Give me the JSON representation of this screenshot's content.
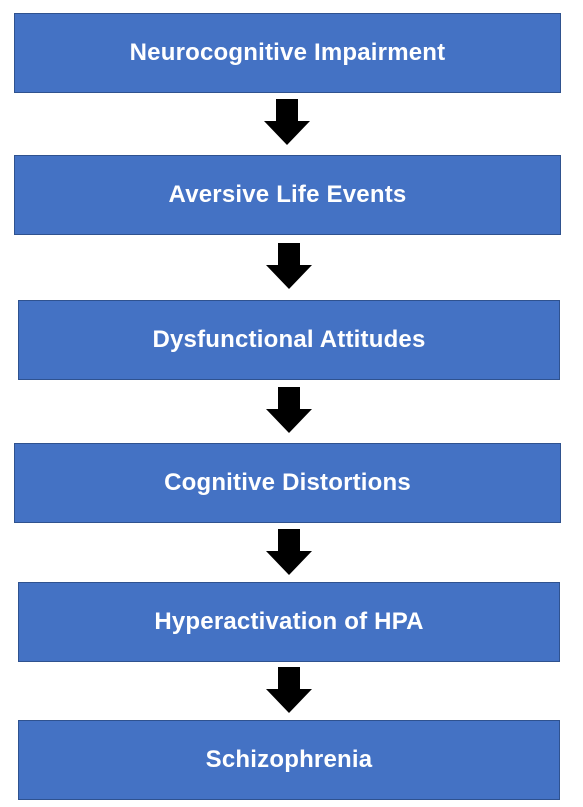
{
  "flowchart": {
    "nodes": [
      {
        "label": "Neurocognitive Impairment"
      },
      {
        "label": "Aversive Life Events"
      },
      {
        "label": "Dysfunctional Attitudes"
      },
      {
        "label": "Cognitive Distortions"
      },
      {
        "label": "Hyperactivation of HPA"
      },
      {
        "label": "Schizophrenia"
      }
    ],
    "colors": {
      "box_fill": "#4472c4",
      "box_border": "#2f528f",
      "text": "#ffffff",
      "arrow": "#000000"
    },
    "arrow_icon": "down-arrow-icon"
  }
}
